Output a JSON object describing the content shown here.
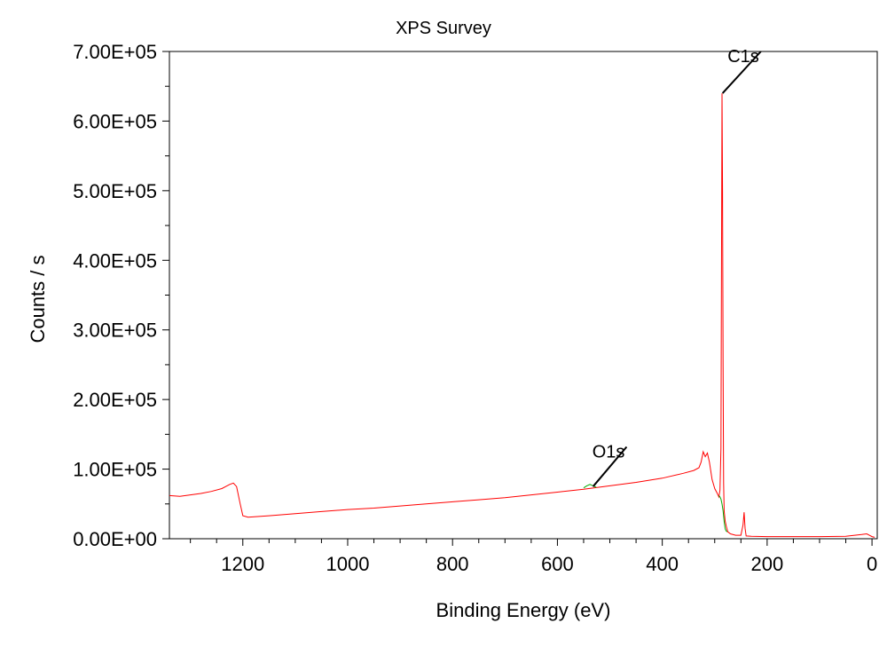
{
  "chart_data": {
    "type": "line",
    "title": "XPS Survey",
    "xlabel": "Binding Energy (eV)",
    "ylabel": "Counts / s",
    "xlim": [
      1340,
      -10
    ],
    "ylim": [
      0,
      700000
    ],
    "x_reversed": true,
    "x_ticks": [
      1200,
      1000,
      800,
      600,
      400,
      200,
      0
    ],
    "x_tick_labels": [
      "1200",
      "1000",
      "800",
      "600",
      "400",
      "200",
      "0"
    ],
    "y_ticks": [
      0,
      100000,
      200000,
      300000,
      400000,
      500000,
      600000,
      700000
    ],
    "y_tick_labels": [
      "0.00E+00",
      "1.00E+05",
      "2.00E+05",
      "3.00E+05",
      "4.00E+05",
      "5.00E+05",
      "6.00E+05",
      "7.00E+05"
    ],
    "grid": false,
    "series": [
      {
        "color": "#ff0000",
        "x": [
          1340,
          1320,
          1300,
          1280,
          1260,
          1240,
          1225,
          1218,
          1212,
          1205,
          1200,
          1190,
          1150,
          1100,
          1050,
          1000,
          950,
          900,
          850,
          800,
          750,
          700,
          650,
          600,
          550,
          500,
          450,
          400,
          360,
          340,
          330,
          326,
          322,
          318,
          314,
          310,
          305,
          300,
          295,
          292,
          290,
          288,
          286,
          285,
          284,
          283,
          282,
          280,
          278,
          275,
          270,
          260,
          250,
          246,
          244,
          242,
          240,
          230,
          200,
          150,
          100,
          50,
          20,
          10,
          5,
          0,
          -5
        ],
        "y": [
          62000,
          61000,
          63000,
          65000,
          68000,
          72000,
          78000,
          80000,
          75000,
          50000,
          33000,
          31000,
          33000,
          36000,
          39000,
          42000,
          44000,
          47000,
          50000,
          53000,
          56000,
          59000,
          63000,
          67000,
          71000,
          76000,
          81000,
          87000,
          94000,
          98000,
          102000,
          110000,
          125000,
          118000,
          123000,
          110000,
          85000,
          72000,
          65000,
          60000,
          70000,
          130000,
          640000,
          500000,
          250000,
          80000,
          40000,
          25000,
          18000,
          10000,
          7000,
          5000,
          5000,
          20000,
          38000,
          15000,
          4000,
          3500,
          3000,
          3000,
          3000,
          3500,
          6000,
          7000,
          5000,
          3000,
          2000
        ]
      },
      {
        "color": "#00aa00",
        "x": [
          550,
          544,
          538,
          532,
          526
        ],
        "y": [
          73000,
          76000,
          78000,
          76000,
          74000
        ]
      },
      {
        "color": "#00aa00",
        "x": [
          292,
          290,
          288,
          286,
          284,
          282,
          280,
          278,
          276
        ],
        "y": [
          62000,
          60000,
          57000,
          50000,
          40000,
          25000,
          14000,
          11000,
          10000
        ]
      }
    ],
    "annotations": [
      {
        "label": "O1s",
        "x": 532,
        "y": 75000,
        "x2": 468,
        "y2": 132000
      },
      {
        "label": "C1s",
        "x": 285,
        "y": 640000,
        "x2": 212,
        "y2": 700000
      }
    ]
  }
}
